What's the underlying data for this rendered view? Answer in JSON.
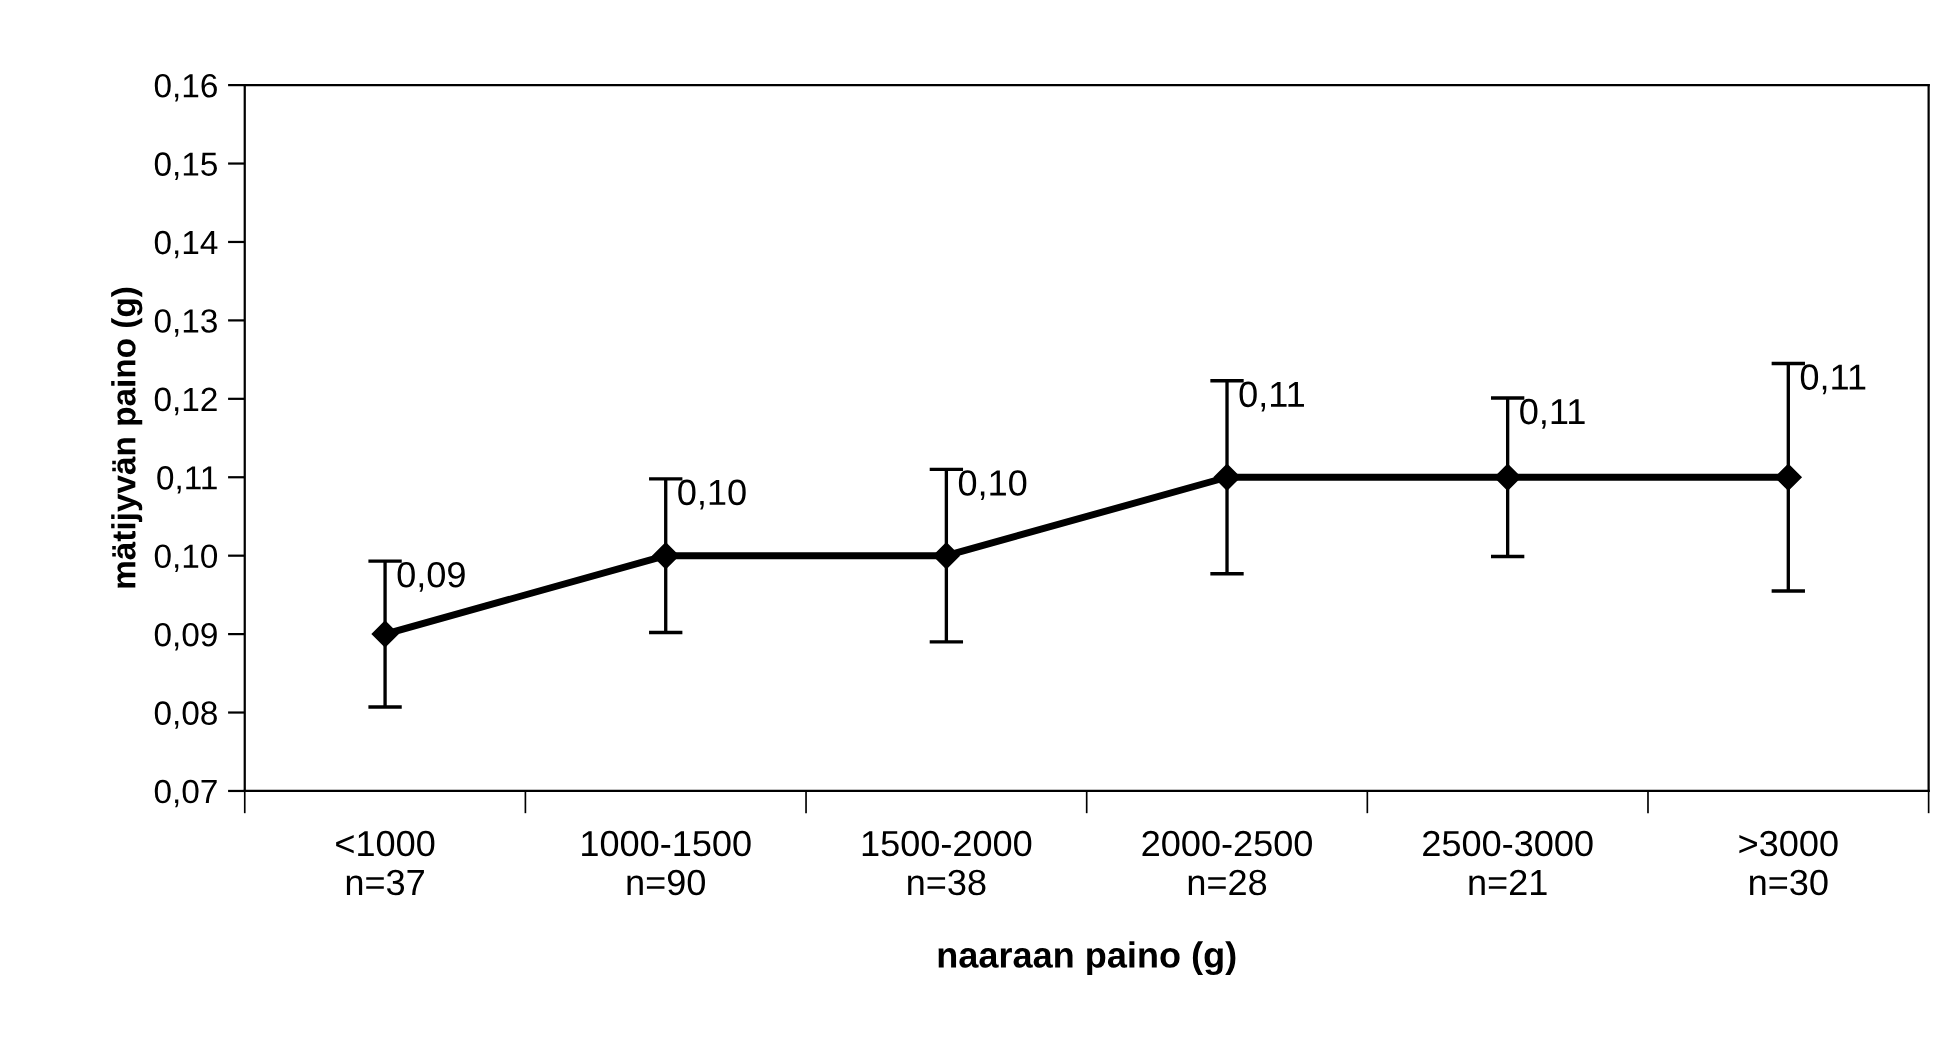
{
  "chart_data": {
    "type": "line",
    "xlabel": "naaraan paino (g)",
    "ylabel": "mätijyvän paino (g)",
    "categories": [
      "<1000\nn=37",
      "1000-1500\nn=90",
      "1500-2000\nn=38",
      "2000-2500\nn=28",
      "2500-3000\nn=21",
      ">3000\nn=30"
    ],
    "series": [
      {
        "color": "#000000",
        "values": [
          0.09,
          0.1,
          0.1,
          0.11,
          0.11,
          0.11
        ],
        "errors": [
          0.0093,
          0.0098,
          0.011,
          0.0123,
          0.0101,
          0.0145
        ],
        "value_labels": [
          "0,09",
          "0,10",
          "0,10",
          "0,11",
          "0,11",
          "0,11"
        ]
      }
    ],
    "ylim": [
      0.07,
      0.16
    ],
    "yticks": [
      {
        "value": 0.07,
        "label": "0,07"
      },
      {
        "value": 0.08,
        "label": "0,08"
      },
      {
        "value": 0.09,
        "label": "0,09"
      },
      {
        "value": 0.1,
        "label": "0,10"
      },
      {
        "value": 0.11,
        "label": "0,11"
      },
      {
        "value": 0.12,
        "label": "0,12"
      },
      {
        "value": 0.13,
        "label": "0,13"
      },
      {
        "value": 0.14,
        "label": "0,14"
      },
      {
        "value": 0.15,
        "label": "0,15"
      },
      {
        "value": 0.16,
        "label": "0,16"
      }
    ],
    "marker": "diamond",
    "line_style": "solid"
  }
}
